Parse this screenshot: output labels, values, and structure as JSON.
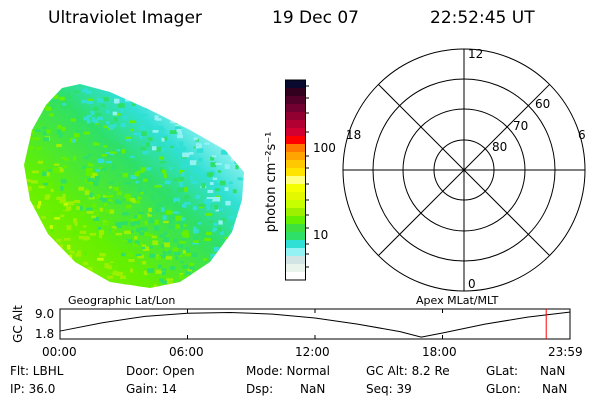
{
  "header": {
    "title": "Ultraviolet Imager",
    "date": "19 Dec 07",
    "time": "22:52:45 UT"
  },
  "colorbar": {
    "label": "photon cm⁻²s⁻¹",
    "ticks": [
      "100",
      "10"
    ],
    "colors": [
      "#0a0a30",
      "#32001e",
      "#52002a",
      "#720030",
      "#920032",
      "#b20032",
      "#d20030",
      "#ff0000",
      "#ff7800",
      "#ffa400",
      "#ffc800",
      "#ffe400",
      "#ffff80",
      "#f4ff00",
      "#e4f800",
      "#c8ff00",
      "#9cf000",
      "#64f000",
      "#3ee040",
      "#2ee068",
      "#30e0d4",
      "#94f2f4",
      "#d2e4e4",
      "#e8f4ec",
      "#ffffff"
    ]
  },
  "polar": {
    "labels": {
      "top": "12",
      "left": "18",
      "right": "6",
      "bottom": "0"
    },
    "rings": [
      "60",
      "70",
      "80"
    ]
  },
  "captions": {
    "left": "Geographic Lat/Lon",
    "right": "Apex MLat/MLT"
  },
  "altitude_plot": {
    "ylabel": "GC Alt",
    "yticks": [
      "9.0",
      "1.8"
    ],
    "xticks": [
      "00:00",
      "06:00",
      "12:00",
      "18:00",
      "23:59"
    ],
    "marker_hour": 22.88,
    "marker_color": "#ff0000",
    "hours": [
      0,
      2,
      4,
      6,
      8,
      10,
      12,
      14,
      16,
      17,
      18,
      20,
      22,
      23.98
    ],
    "alt_re": [
      2.5,
      5.5,
      7.8,
      8.9,
      9.2,
      8.6,
      7.2,
      5.0,
      2.3,
      0.3,
      1.8,
      5.0,
      7.5,
      9.3
    ]
  },
  "status": {
    "flt": "Flt: LBHL",
    "ip": "IP: 36.0",
    "door": "Door: Open",
    "gain": "Gain: 14",
    "mode": "Mode: Normal",
    "dsp_label": "Dsp:",
    "dsp_value": "NaN",
    "gcalt": "GC Alt: 8.2 Re",
    "seq": "Seq: 39",
    "glat_label": "GLat:",
    "glat_value": "NaN",
    "glon_label": "GLon:",
    "glon_value": "NaN"
  }
}
